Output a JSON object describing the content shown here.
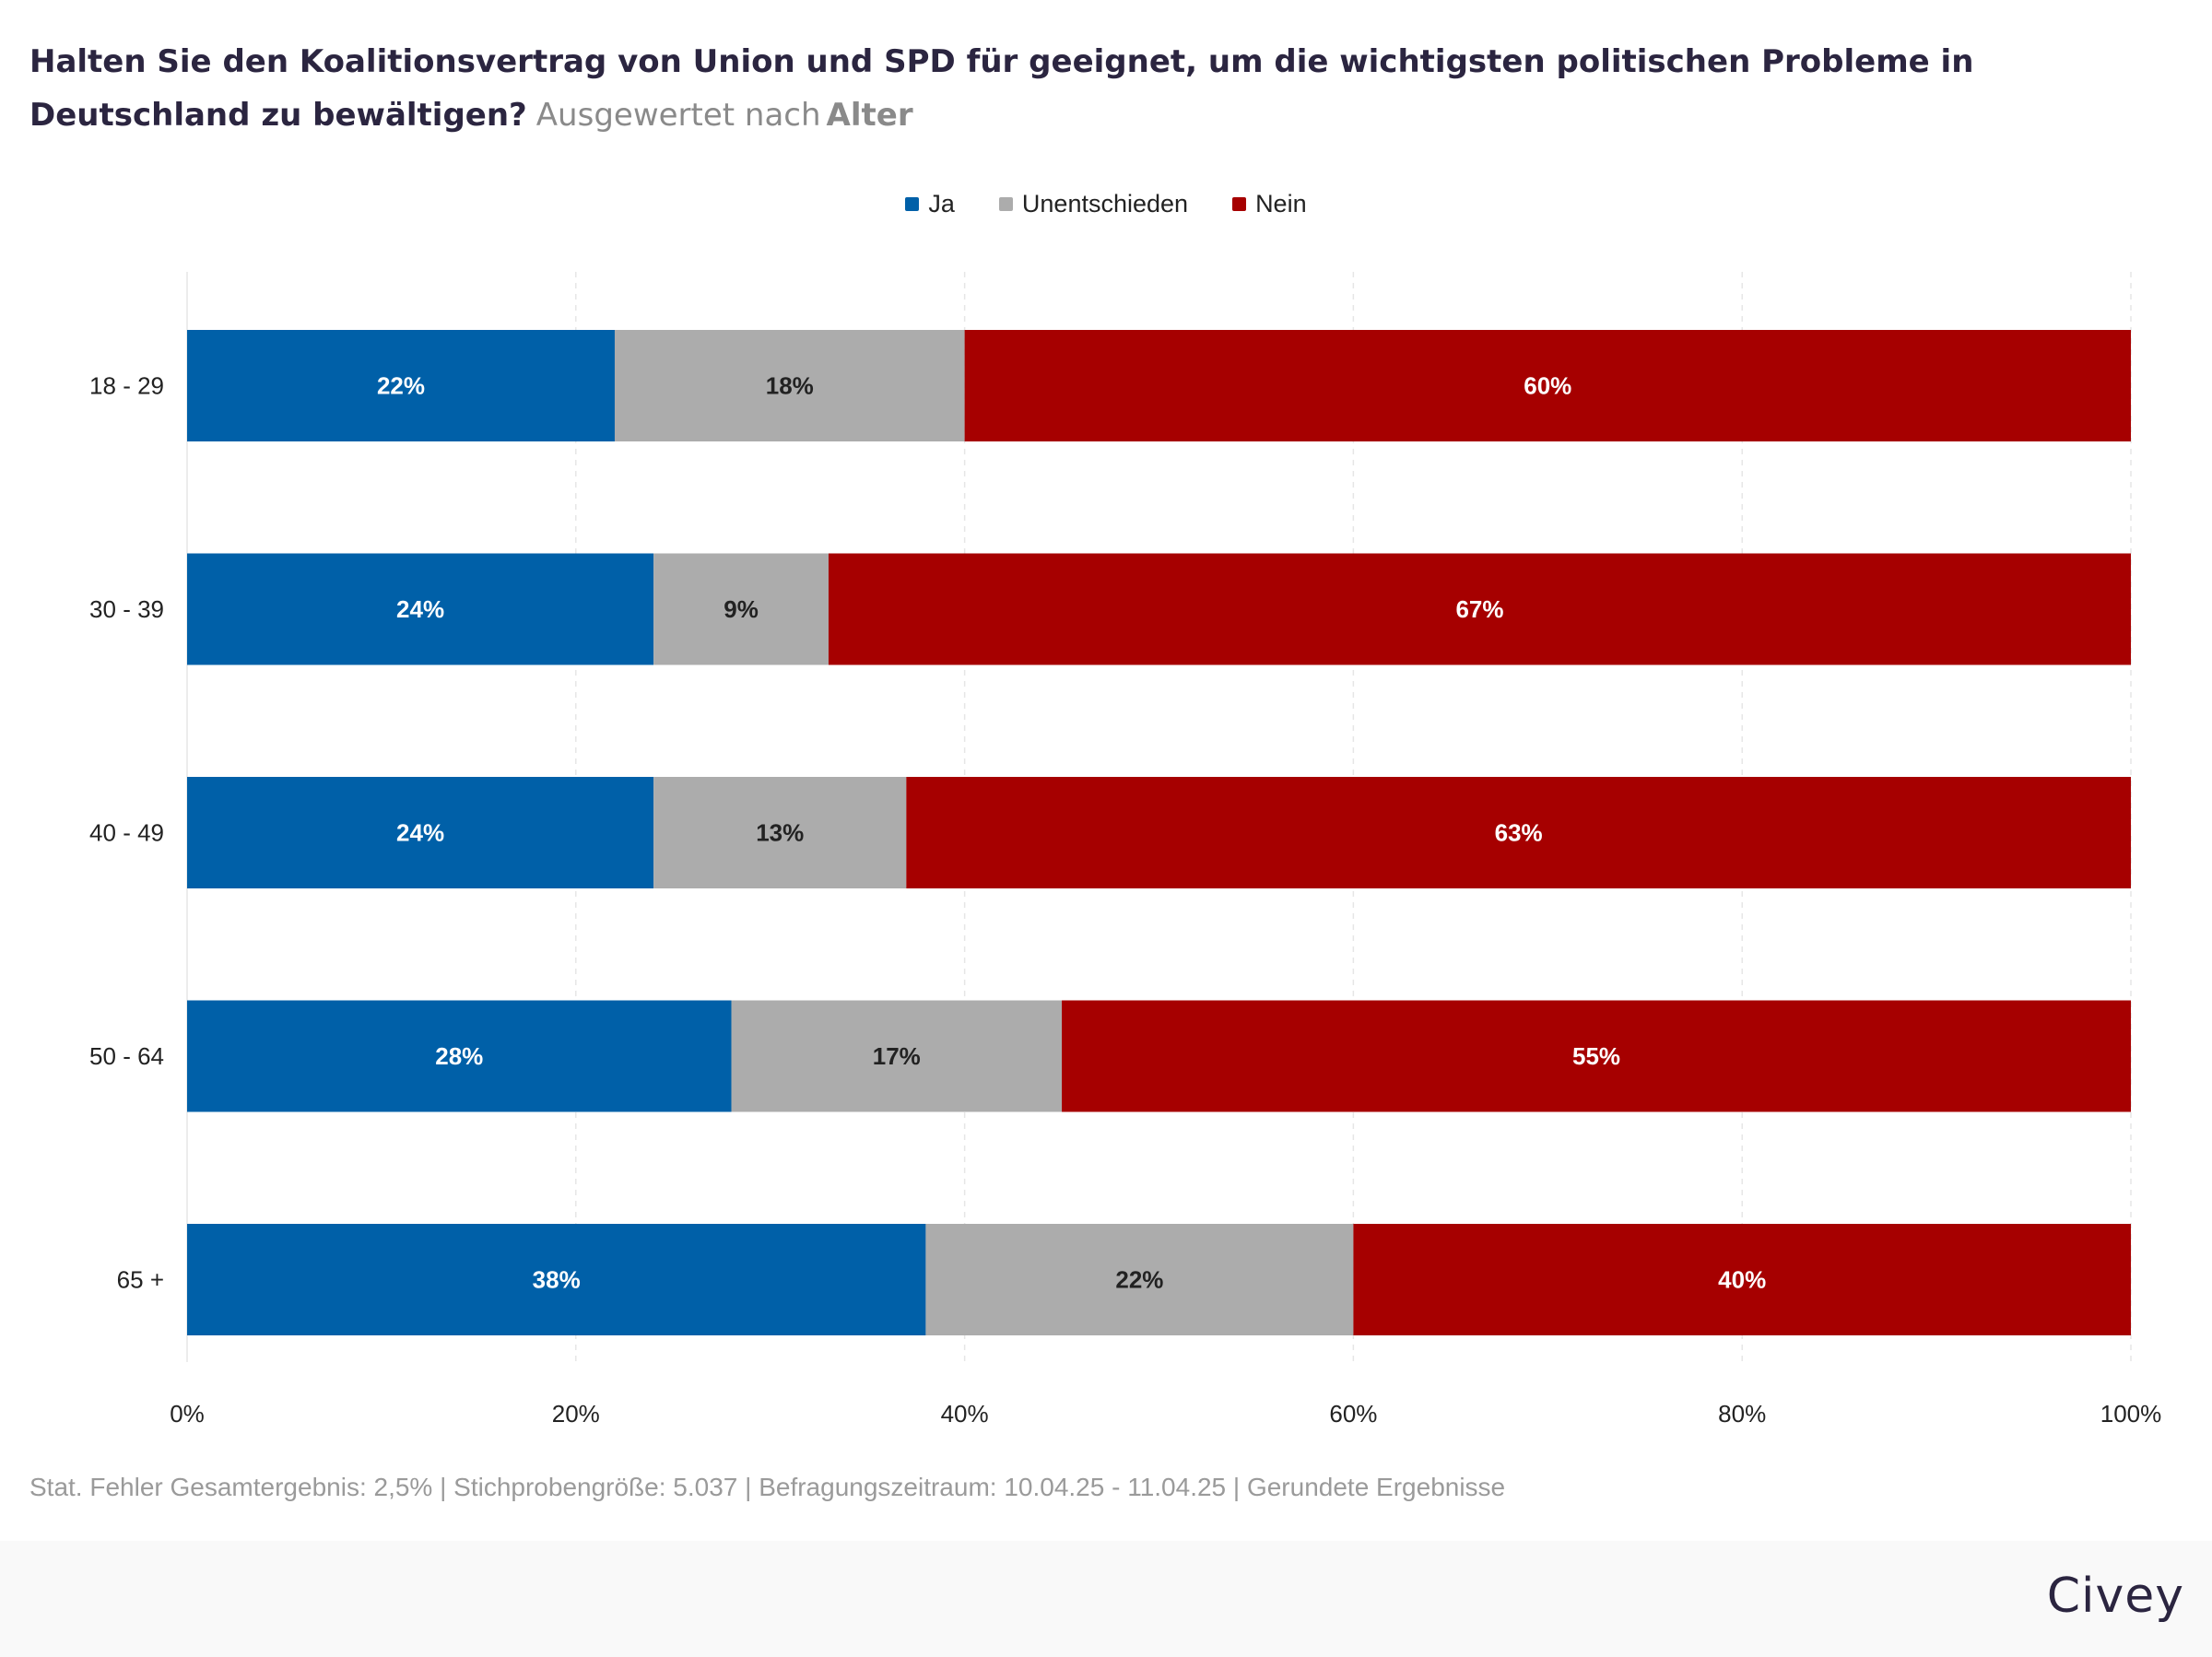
{
  "header": {
    "question": "Halten Sie den Koalitionsvertrag von Union und SPD für geeignet, um die wichtigsten politischen Probleme in Deutschland zu bewältigen?",
    "breakdown_prefix": "Ausgewertet nach",
    "breakdown_dimension": "Alter"
  },
  "colors": {
    "ja": "#0060a8",
    "unentschieden": "#acacac",
    "nein": "#a60000",
    "grid": "#e6e6e6",
    "label_light": "#ffffff",
    "label_dark": "#222222"
  },
  "chart_data": {
    "type": "bar",
    "orientation": "horizontal",
    "stacked": true,
    "categories": [
      "18 - 29",
      "30 - 39",
      "40 - 49",
      "50 - 64",
      "65 +"
    ],
    "series": [
      {
        "name": "Ja",
        "values": [
          22,
          24,
          24,
          28,
          38
        ]
      },
      {
        "name": "Unentschieden",
        "values": [
          18,
          9,
          13,
          17,
          22
        ]
      },
      {
        "name": "Nein",
        "values": [
          60,
          67,
          63,
          55,
          40
        ]
      }
    ],
    "xlim": [
      0,
      100
    ],
    "xticks": [
      "0%",
      "20%",
      "40%",
      "60%",
      "80%",
      "100%"
    ],
    "xtick_values": [
      0,
      20,
      40,
      60,
      80,
      100
    ],
    "value_suffix": "%",
    "grid": true,
    "legend_position": "top-center"
  },
  "footnote": "Stat. Fehler Gesamtergebnis: 2,5% | Stichprobengröße: 5.037 | Befragungszeitraum: 10.04.25 - 11.04.25 | Gerundete Ergebnisse",
  "brand": "Civey"
}
